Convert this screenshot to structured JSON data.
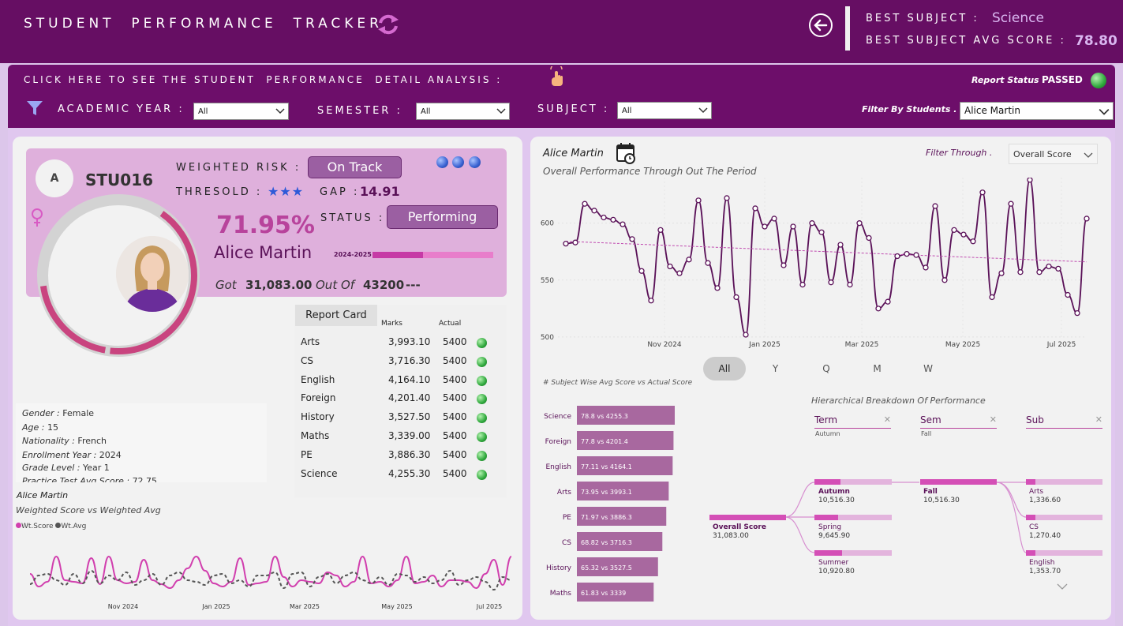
{
  "header": {
    "title": "STUDENT  PERFORMANCE  TRACKER",
    "best_subject_label": "BEST SUBJECT :",
    "best_subject_value": "Science",
    "best_avg_label": "BEST SUBJECT AVG SCORE :",
    "best_avg_value": "78.80"
  },
  "filters": {
    "cta": "CLICK HERE TO SEE THE STUDENT  PERFORMANCE  DETAIL ANALYSIS :",
    "report_status_label": "Report Status .",
    "report_status_value": "PASSED",
    "academic_year_label": "ACADEMIC YEAR :",
    "academic_year_value": "All",
    "semester_label": "SEMESTER :",
    "semester_value": "All",
    "subject_label": "SUBJECT :",
    "subject_value": "All",
    "students_label": "Filter By Students .",
    "students_value": "Alice Martin"
  },
  "profile": {
    "avatar_initial": "A",
    "student_id": "STU016",
    "weighted_risk_label": "WEIGHTED RISK :",
    "weighted_risk_value": "On Track",
    "threshold_label": "THRESOLD :",
    "threshold_stars": "★★★",
    "gap_label": "GAP :",
    "gap_value": "14.91",
    "status_label": "STATUS :",
    "status_value": "Performing",
    "percent": "71.95%",
    "name": "Alice Martin",
    "year_label": "2024-2025",
    "year_progress": 0.42,
    "donut_progress": 0.7195,
    "got_label": "Got",
    "got_value": "31,083.00",
    "out_of_label": "Out Of",
    "out_of_value": "43200",
    "dash": "---"
  },
  "report_card": {
    "tab": "Report Card",
    "col_marks": "Marks",
    "col_actual": "Actual",
    "rows": [
      {
        "subject": "Arts",
        "marks": "3,993.10",
        "actual": "5400"
      },
      {
        "subject": "CS",
        "marks": "3,716.30",
        "actual": "5400"
      },
      {
        "subject": "English",
        "marks": "4,164.10",
        "actual": "5400"
      },
      {
        "subject": "Foreign",
        "marks": "4,201.40",
        "actual": "5400"
      },
      {
        "subject": "History",
        "marks": "3,527.50",
        "actual": "5400"
      },
      {
        "subject": "Maths",
        "marks": "3,339.00",
        "actual": "5400"
      },
      {
        "subject": "PE",
        "marks": "3,886.30",
        "actual": "5400"
      },
      {
        "subject": "Science",
        "marks": "4,255.30",
        "actual": "5400"
      }
    ]
  },
  "info": {
    "gender_label": "Gender :",
    "gender": "Female",
    "age_label": "Age :",
    "age": "15",
    "nationality_label": "Nationality :",
    "nationality": "French",
    "enroll_label": "Enrollment Year :",
    "enroll": "2024",
    "grade_label": "Grade Level :",
    "grade": "Year 1",
    "practice_label": "Practice Test Avg Score :",
    "practice": "72.75"
  },
  "weighted_chart": {
    "name": "Alice Martin",
    "subtitle": "Weighted Score vs Weighted Avg",
    "legend_score": "Wt.Score",
    "legend_avg": "Wt.Avg",
    "x_ticks": [
      "Nov 2024",
      "Jan 2025",
      "Mar 2025",
      "May 2025",
      "Jul 2025"
    ],
    "score": [
      38,
      22,
      28,
      60,
      30,
      28,
      26,
      58,
      25,
      60,
      30,
      26,
      28,
      56,
      30,
      25,
      20,
      30,
      45,
      60,
      42,
      26,
      22,
      28,
      58,
      24,
      26,
      28,
      60,
      34,
      22,
      30,
      28,
      26,
      40,
      36,
      22,
      28,
      60,
      26,
      28,
      22,
      30,
      60,
      26,
      28,
      36,
      22,
      30,
      30,
      28,
      20,
      38,
      56,
      24,
      60
    ],
    "avg": [
      25,
      36,
      38,
      30,
      24,
      38,
      26,
      42,
      26,
      36,
      30,
      40,
      24,
      30,
      38,
      24,
      36,
      40,
      30,
      28,
      24,
      36,
      38,
      26,
      30,
      22,
      36,
      36,
      40,
      20,
      38,
      40,
      22,
      34,
      38,
      26,
      36,
      40,
      30,
      26,
      34,
      24,
      38,
      36,
      28,
      34,
      26,
      30,
      42,
      24,
      30,
      34,
      28,
      18,
      34,
      30
    ]
  },
  "overall_chart": {
    "name": "Alice Martin",
    "subtitle": "Overall Performance Through Out The Period",
    "filter_label": "Filter Through .",
    "filter_value": "Overall Score",
    "y_ticks": [
      "600",
      "550",
      "500"
    ],
    "x_ticks": [
      "Nov 2024",
      "Jan 2025",
      "Mar 2025",
      "May 2025",
      "Jul 2025"
    ],
    "ylim": [
      493,
      640
    ],
    "values": [
      582,
      583,
      617,
      611,
      605,
      603,
      599,
      586,
      558,
      532,
      594,
      562,
      556,
      568,
      620,
      565,
      543,
      622,
      535,
      502,
      613,
      597,
      604,
      563,
      597,
      546,
      600,
      592,
      548,
      581,
      546,
      600,
      587,
      525,
      531,
      571,
      573,
      572,
      561,
      615,
      550,
      594,
      590,
      584,
      627,
      535,
      556,
      617,
      557,
      638,
      557,
      562,
      560,
      537,
      521,
      604
    ],
    "trend_start": 584,
    "trend_end": 566,
    "tabs": [
      "All",
      "Y",
      "Q",
      "M",
      "W"
    ]
  },
  "bar_chart": {
    "title": "# Subject Wise Avg Score vs Actual Score",
    "rows": [
      {
        "subject": "Science",
        "label": "78.8 vs 4255.3",
        "value": 78.8
      },
      {
        "subject": "Foreign",
        "label": "77.8 vs 4201.4",
        "value": 77.8
      },
      {
        "subject": "English",
        "label": "77.11 vs 4164.1",
        "value": 77.11
      },
      {
        "subject": "Arts",
        "label": "73.95 vs 3993.1",
        "value": 73.95
      },
      {
        "subject": "PE",
        "label": "71.97 vs 3886.3",
        "value": 71.97
      },
      {
        "subject": "CS",
        "label": "68.82 vs 3716.3",
        "value": 68.82
      },
      {
        "subject": "History",
        "label": "65.32 vs 3527.5",
        "value": 65.32
      },
      {
        "subject": "Maths",
        "label": "61.83 vs 3339",
        "value": 61.83
      }
    ]
  },
  "hierarchy": {
    "title": "Hierarchical Breakdown Of Performance",
    "col_term": "Term",
    "col_term_sel": "Autumn",
    "col_sem": "Sem",
    "col_sem_sel": "Fall",
    "col_sub": "Sub",
    "root_name": "Overall Score",
    "root_value": "31,083.00",
    "terms": [
      {
        "name": "Autumn",
        "value": "10,516.30"
      },
      {
        "name": "Spring",
        "value": "9,645.90"
      },
      {
        "name": "Summer",
        "value": "10,920.80"
      }
    ],
    "sem_name": "Fall",
    "sem_value": "10,516.30",
    "subs": [
      {
        "name": "Arts",
        "value": "1,336.60"
      },
      {
        "name": "CS",
        "value": "1,270.40"
      },
      {
        "name": "English",
        "value": "1,353.70"
      }
    ]
  },
  "colors": {
    "header_bg": "#660e63",
    "accent": "#b8439c",
    "line": "#5a1158",
    "bar": "#a8689f"
  }
}
